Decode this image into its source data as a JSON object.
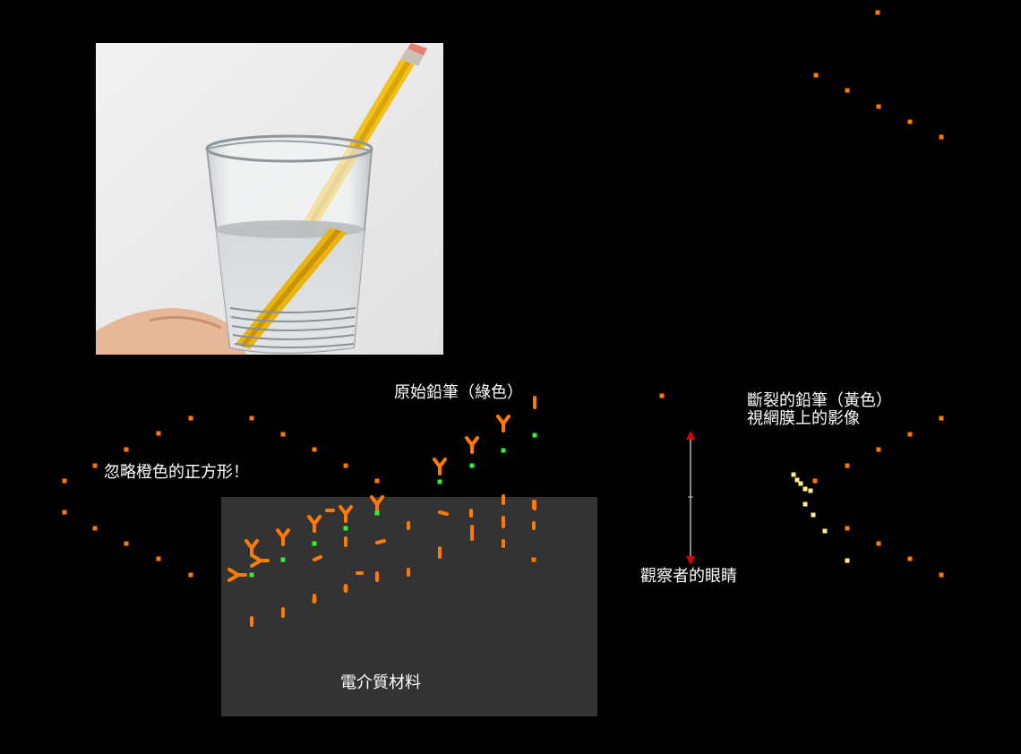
{
  "labels": {
    "original_pencil": "原始鉛筆（綠色）",
    "ignore_squares": "忽略橙色的正方形！",
    "broken_pencil_line1": "斷裂的鉛筆（黃色）",
    "broken_pencil_line2": "視網膜上的影像",
    "observer_eye": "觀察者的眼睛",
    "dielectric_material": "電介質材料"
  },
  "colors": {
    "orange": "#ff7a00",
    "green": "#33ee33",
    "yellow": "#ffee88",
    "dielectric": "#333333",
    "arrow_head": "#dd0000",
    "arrow_shaft": "#888888"
  }
}
